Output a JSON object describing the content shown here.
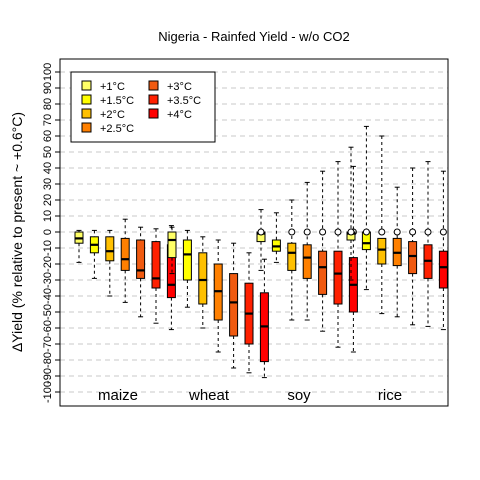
{
  "chart_data": {
    "type": "box",
    "title": "Nigeria - Rainfed Yield - w/o CO2",
    "xlabel": "",
    "ylabel": "ΔYield (% relative to present ~ +0.6°C)",
    "ylim": [
      -105,
      105
    ],
    "yticks": [
      -100,
      -90,
      -80,
      -70,
      -60,
      -50,
      -40,
      -30,
      -20,
      -10,
      0,
      10,
      20,
      30,
      40,
      50,
      60,
      70,
      80,
      90,
      100
    ],
    "grid": "horizontal-dashed",
    "legend_position": "top-left",
    "categories": [
      "maize",
      "wheat",
      "soy",
      "rice"
    ],
    "series": [
      {
        "name": "+1°C",
        "color": "#ffff66"
      },
      {
        "name": "+1.5°C",
        "color": "#ffff00"
      },
      {
        "name": "+2°C",
        "color": "#ffc000"
      },
      {
        "name": "+2.5°C",
        "color": "#ff8000"
      },
      {
        "name": "+3°C",
        "color": "#f05a10"
      },
      {
        "name": "+3.5°C",
        "color": "#ff2000"
      },
      {
        "name": "+4°C",
        "color": "#ff0000"
      }
    ],
    "boxes": {
      "maize": [
        {
          "min": -19,
          "q1": -7,
          "median": -4,
          "q3": 0,
          "max": 1
        },
        {
          "min": -29,
          "q1": -13,
          "median": -8,
          "q3": -3,
          "max": 1
        },
        {
          "min": -40,
          "q1": -18,
          "median": -12,
          "q3": -3,
          "max": 1
        },
        {
          "min": -44,
          "q1": -24,
          "median": -17,
          "q3": -4,
          "max": 8
        },
        {
          "min": -53,
          "q1": -29,
          "median": -24,
          "q3": -5,
          "max": 3
        },
        {
          "min": -57,
          "q1": -35,
          "median": -29,
          "q3": -6,
          "max": 2
        },
        {
          "min": -61,
          "q1": -41,
          "median": -33,
          "q3": -8,
          "max": 4
        }
      ],
      "wheat": [
        {
          "min": -26,
          "q1": -16,
          "median": -5,
          "q3": 0,
          "max": 3
        },
        {
          "min": -47,
          "q1": -30,
          "median": -14,
          "q3": -5,
          "max": 1
        },
        {
          "min": -60,
          "q1": -45,
          "median": -30,
          "q3": -13,
          "max": -3
        },
        {
          "min": -75,
          "q1": -55,
          "median": -37,
          "q3": -20,
          "max": -5
        },
        {
          "min": -85,
          "q1": -65,
          "median": -44,
          "q3": -26,
          "max": -7
        },
        {
          "min": -88,
          "q1": -70,
          "median": -51,
          "q3": -32,
          "max": -13
        },
        {
          "min": -91,
          "q1": -81,
          "median": -59,
          "q3": -38,
          "max": -17
        }
      ],
      "soy": [
        {
          "min": -24,
          "q1": -6,
          "median": -1,
          "q3": 0,
          "max": 14,
          "outlier": 0
        },
        {
          "min": -19,
          "q1": -12,
          "median": -9,
          "q3": -5,
          "max": 12
        },
        {
          "min": -55,
          "q1": -24,
          "median": -13,
          "q3": -7,
          "max": 20,
          "outlier": 0
        },
        {
          "min": -55,
          "q1": -29,
          "median": -16,
          "q3": -8,
          "max": 31,
          "outlier": 0
        },
        {
          "min": -62,
          "q1": -39,
          "median": -22,
          "q3": -12,
          "max": 38,
          "outlier": 0
        },
        {
          "min": -72,
          "q1": -45,
          "median": -26,
          "q3": -12,
          "max": 44,
          "outlier": 0
        },
        {
          "min": -75,
          "q1": -50,
          "median": -33,
          "q3": -16,
          "max": 41,
          "outlier": 0
        }
      ],
      "rice": [
        {
          "min": -30,
          "q1": -5,
          "median": -1,
          "q3": 0,
          "max": 53,
          "outlier": 0
        },
        {
          "min": -36,
          "q1": -11,
          "median": -7,
          "q3": 0,
          "max": 66,
          "outlier": 0
        },
        {
          "min": -51,
          "q1": -20,
          "median": -11,
          "q3": -4,
          "max": 60,
          "outlier": 0
        },
        {
          "min": -53,
          "q1": -21,
          "median": -13,
          "q3": -4,
          "max": 28,
          "outlier": 0
        },
        {
          "min": -58,
          "q1": -26,
          "median": -15,
          "q3": -6,
          "max": 40,
          "outlier": 0
        },
        {
          "min": -59,
          "q1": -29,
          "median": -18,
          "q3": -8,
          "max": 44,
          "outlier": 0
        },
        {
          "min": -61,
          "q1": -35,
          "median": -22,
          "q3": -12,
          "max": 38,
          "outlier": 0
        }
      ]
    }
  }
}
